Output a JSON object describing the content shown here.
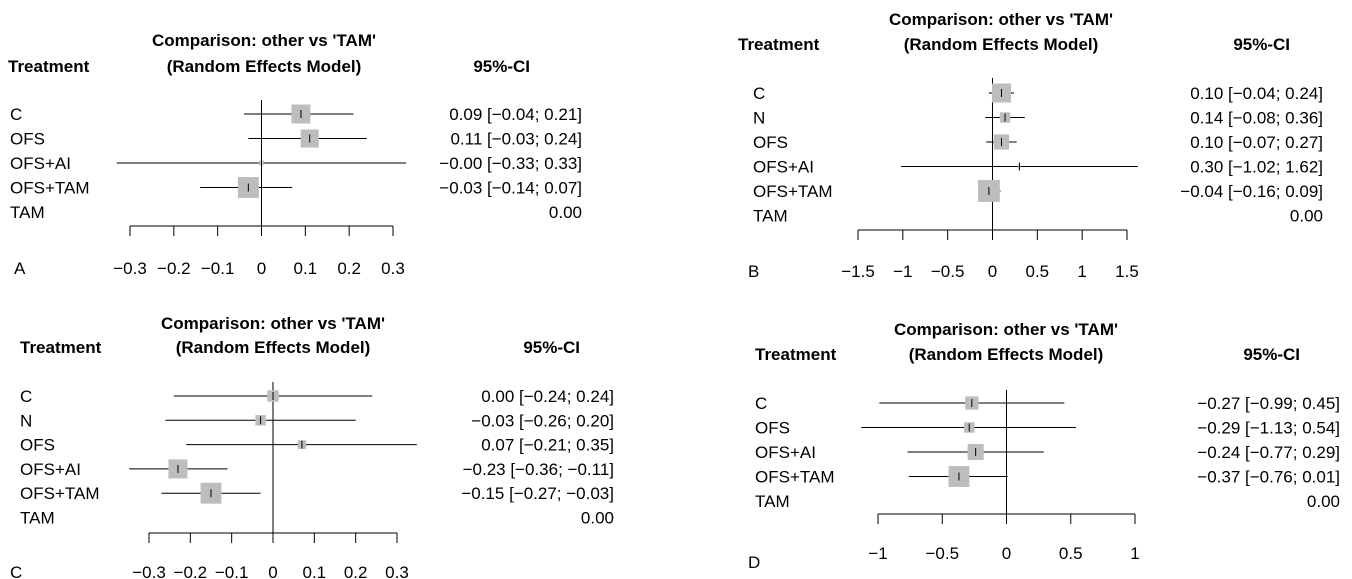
{
  "figure": {
    "panel_labels": [
      "A",
      "B",
      "C",
      "D"
    ]
  },
  "chart_data": [
    {
      "type": "forest",
      "panel": "A",
      "title_line1": "Comparison: other vs 'TAM'",
      "title_line2": "(Random Effects Model)",
      "treatment_header": "Treatment",
      "ci_header": "95%-CI",
      "xlim": [
        -0.3,
        0.3
      ],
      "ticks": [
        -0.3,
        -0.2,
        -0.1,
        0,
        0.1,
        0.2,
        0.3
      ],
      "tick_labels": [
        "−0.3",
        "−0.2",
        "−0.1",
        "0",
        "0.1",
        "0.2",
        "0.3"
      ],
      "rows": [
        {
          "label": "C",
          "est": 0.09,
          "lo": -0.04,
          "hi": 0.21,
          "text": "0.09 [−0.04; 0.21]",
          "box": 1.0
        },
        {
          "label": "OFS",
          "est": 0.11,
          "lo": -0.03,
          "hi": 0.24,
          "text": "0.11 [−0.03; 0.24]",
          "box": 0.95
        },
        {
          "label": "OFS+AI",
          "est": -0.0,
          "lo": -0.33,
          "hi": 0.33,
          "text": "−0.00 [−0.33; 0.33]",
          "box": 0.25
        },
        {
          "label": "OFS+TAM",
          "est": -0.03,
          "lo": -0.14,
          "hi": 0.07,
          "text": "−0.03 [−0.14; 0.07]",
          "box": 1.1
        },
        {
          "label": "TAM",
          "est": null,
          "lo": null,
          "hi": null,
          "text": "0.00",
          "box": 0
        }
      ]
    },
    {
      "type": "forest",
      "panel": "B",
      "title_line1": "Comparison: other vs 'TAM'",
      "title_line2": "(Random Effects Model)",
      "treatment_header": "Treatment",
      "ci_header": "95%-CI",
      "xlim": [
        -1.5,
        1.5
      ],
      "ticks": [
        -1.5,
        -1,
        -0.5,
        0,
        0.5,
        1,
        1.5
      ],
      "tick_labels": [
        "−1.5",
        "−1",
        "−0.5",
        "0",
        "0.5",
        "1",
        "1.5"
      ],
      "rows": [
        {
          "label": "C",
          "est": 0.1,
          "lo": -0.04,
          "hi": 0.24,
          "text": "0.10 [−0.04; 0.24]",
          "box": 1.0
        },
        {
          "label": "N",
          "est": 0.14,
          "lo": -0.08,
          "hi": 0.36,
          "text": "0.14 [−0.08; 0.36]",
          "box": 0.55
        },
        {
          "label": "OFS",
          "est": 0.1,
          "lo": -0.07,
          "hi": 0.27,
          "text": "0.10 [−0.07; 0.27]",
          "box": 0.8
        },
        {
          "label": "OFS+AI",
          "est": 0.3,
          "lo": -1.02,
          "hi": 1.62,
          "text": "0.30 [−1.02; 1.62]",
          "box": 0.12
        },
        {
          "label": "OFS+TAM",
          "est": -0.04,
          "lo": -0.16,
          "hi": 0.09,
          "text": "−0.04 [−0.16; 0.09]",
          "box": 1.15
        },
        {
          "label": "TAM",
          "est": null,
          "lo": null,
          "hi": null,
          "text": "0.00",
          "box": 0
        }
      ]
    },
    {
      "type": "forest",
      "panel": "C",
      "title_line1": "Comparison: other vs 'TAM'",
      "title_line2": "(Random Effects Model)",
      "treatment_header": "Treatment",
      "ci_header": "95%-CI",
      "xlim": [
        -0.3,
        0.3
      ],
      "ticks": [
        -0.3,
        -0.2,
        -0.1,
        0,
        0.1,
        0.2,
        0.3
      ],
      "tick_labels": [
        "−0.3",
        "−0.2",
        "−0.1",
        "0",
        "0.1",
        "0.2",
        "0.3"
      ],
      "rows": [
        {
          "label": "C",
          "est": 0.0,
          "lo": -0.24,
          "hi": 0.24,
          "text": "0.00  [−0.24;  0.24]",
          "box": 0.6
        },
        {
          "label": "N",
          "est": -0.03,
          "lo": -0.26,
          "hi": 0.2,
          "text": "−0.03  [−0.26;  0.20]",
          "box": 0.55
        },
        {
          "label": "OFS",
          "est": 0.07,
          "lo": -0.21,
          "hi": 0.35,
          "text": "0.07  [−0.21;  0.35]",
          "box": 0.45
        },
        {
          "label": "OFS+AI",
          "est": -0.23,
          "lo": -0.36,
          "hi": -0.11,
          "text": "−0.23  [−0.36; −0.11]",
          "box": 1.0
        },
        {
          "label": "OFS+TAM",
          "est": -0.15,
          "lo": -0.27,
          "hi": -0.03,
          "text": "−0.15  [−0.27; −0.03]",
          "box": 1.1
        },
        {
          "label": "TAM",
          "est": null,
          "lo": null,
          "hi": null,
          "text": "0.00",
          "box": 0
        }
      ]
    },
    {
      "type": "forest",
      "panel": "D",
      "title_line1": "Comparison: other vs 'TAM'",
      "title_line2": "(Random Effects Model)",
      "treatment_header": "Treatment",
      "ci_header": "95%-CI",
      "xlim": [
        -1,
        1
      ],
      "ticks": [
        -1,
        -0.5,
        0,
        0.5,
        1
      ],
      "tick_labels": [
        "−1",
        "−0.5",
        "0",
        "0.5",
        "1"
      ],
      "rows": [
        {
          "label": "C",
          "est": -0.27,
          "lo": -0.99,
          "hi": 0.45,
          "text": "−0.27 [−0.99; 0.45]",
          "box": 0.7
        },
        {
          "label": "OFS",
          "est": -0.29,
          "lo": -1.13,
          "hi": 0.54,
          "text": "−0.29 [−1.13; 0.54]",
          "box": 0.55
        },
        {
          "label": "OFS+AI",
          "est": -0.24,
          "lo": -0.77,
          "hi": 0.29,
          "text": "−0.24 [−0.77; 0.29]",
          "box": 0.85
        },
        {
          "label": "OFS+TAM",
          "est": -0.37,
          "lo": -0.76,
          "hi": 0.01,
          "text": "−0.37 [−0.76; 0.01]",
          "box": 1.1
        },
        {
          "label": "TAM",
          "est": null,
          "lo": null,
          "hi": null,
          "text": "0.00",
          "box": 0
        }
      ]
    }
  ]
}
